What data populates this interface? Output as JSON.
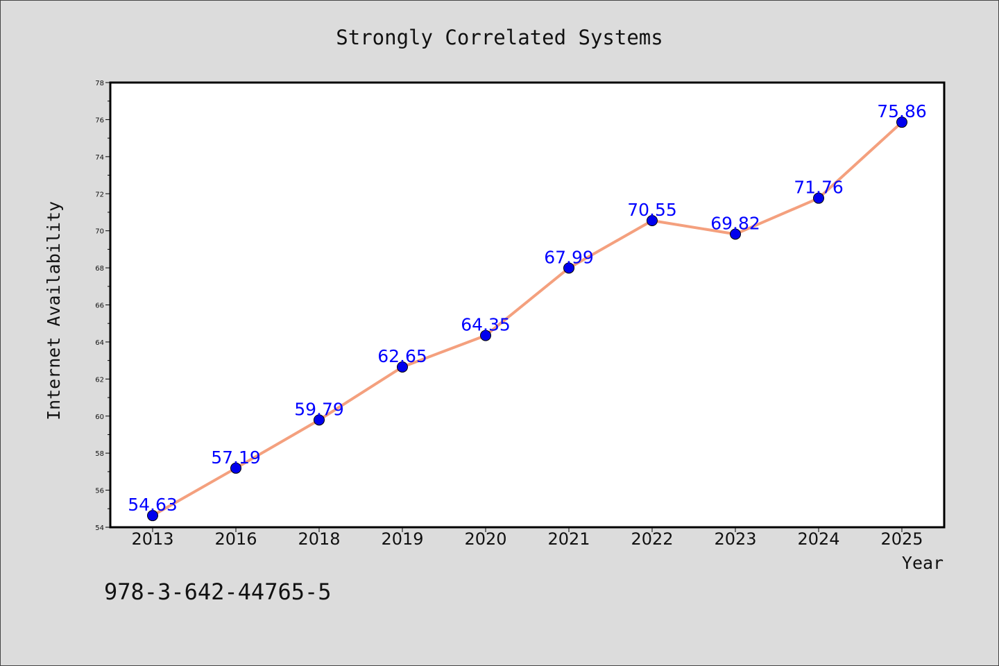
{
  "chart_data": {
    "type": "line",
    "title": "Strongly Correlated Systems",
    "xlabel": "Year",
    "ylabel": "Internet Availability",
    "categories": [
      "2013",
      "2016",
      "2018",
      "2019",
      "2020",
      "2021",
      "2022",
      "2023",
      "2024",
      "2025"
    ],
    "series": [
      {
        "values": [
          54.63,
          57.19,
          59.79,
          62.65,
          64.35,
          67.99,
          70.55,
          69.82,
          71.76,
          75.86
        ]
      }
    ],
    "ylim": [
      54,
      78
    ],
    "yticks": [
      54,
      56,
      58,
      60,
      62,
      64,
      66,
      68,
      70,
      72,
      74,
      76,
      78
    ],
    "data_labels": [
      "54.63",
      "57.19",
      "59.79",
      "62.65",
      "64.35",
      "67.99",
      "70.55",
      "69.82",
      "71.76",
      "75.86"
    ],
    "grid": false,
    "colors": {
      "line": "#f4a07e",
      "marker": "#0000ee",
      "data_label": "#0000ff",
      "background": "#dcdcdc",
      "plot_background": "#ffffff"
    }
  },
  "footer": {
    "isbn": "978-3-642-44765-5"
  }
}
